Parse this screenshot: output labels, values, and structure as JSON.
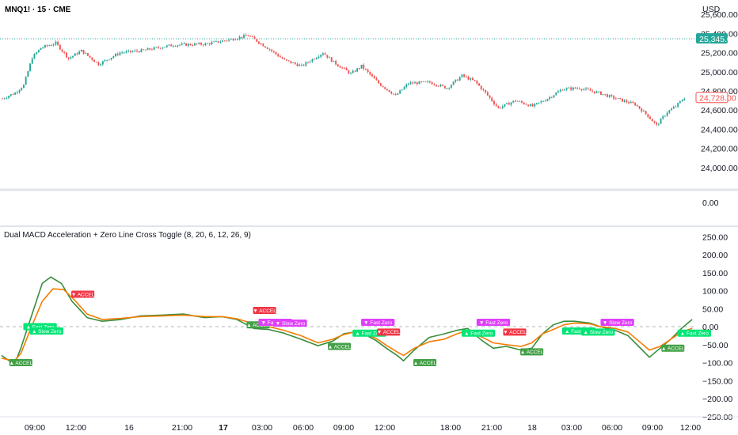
{
  "header": {
    "symbol_line": "MNQ1! · 15 · CME",
    "currency": "USD"
  },
  "price_axis": {
    "ticks": [
      "25,600.00",
      "25,400.00",
      "25,200.00",
      "25,000.00",
      "24,800.00",
      "24,600.00",
      "24,400.00",
      "24,200.00",
      "24,000.00"
    ],
    "last_price_badge": "25,345.00",
    "current_price_badge": "24,728.00"
  },
  "volume_pane": {
    "tick": "0.00"
  },
  "indicator": {
    "title": "Dual MACD Acceleration + Zero Line Cross Toggle (8, 20, 6, 12, 26, 9)",
    "ticks": [
      "250.00",
      "200.00",
      "150.00",
      "100.00",
      "50.00",
      "0.00",
      "−50.00",
      "−100.00",
      "−150.00",
      "−200.00",
      "−250.00"
    ]
  },
  "time_axis": {
    "labels": [
      "09:00",
      "12:00",
      "16",
      "21:00",
      "17",
      "03:00",
      "06:00",
      "09:00",
      "12:00",
      "18:00",
      "21:00",
      "18",
      "03:00",
      "06:00",
      "09:00",
      "12:00"
    ],
    "bold_labels": [
      "17"
    ]
  },
  "colors": {
    "up": "#26a69a",
    "down": "#ef5350",
    "fast_line": "#388e3c",
    "slow_line": "#f57c00",
    "accel_up": "#43a047",
    "accel_down": "#f23645",
    "zero_cross_up": "#00e676",
    "zero_cross_down": "#e040fb"
  },
  "chart_data": [
    {
      "type": "candlestick",
      "title": "MNQ1! · 15 · CME",
      "y_unit": "USD",
      "ylim": [
        23850,
        25750
      ],
      "reference_line": 25345,
      "last_value": 24728,
      "close_path": [
        {
          "bar": 0,
          "close": 24720
        },
        {
          "bar": 6,
          "close": 24780
        },
        {
          "bar": 10,
          "close": 24860
        },
        {
          "bar": 14,
          "close": 25150
        },
        {
          "bar": 18,
          "close": 25250
        },
        {
          "bar": 25,
          "close": 25300
        },
        {
          "bar": 31,
          "close": 25140
        },
        {
          "bar": 37,
          "close": 25220
        },
        {
          "bar": 45,
          "close": 25080
        },
        {
          "bar": 55,
          "close": 25200
        },
        {
          "bar": 65,
          "close": 25220
        },
        {
          "bar": 80,
          "close": 25280
        },
        {
          "bar": 95,
          "close": 25290
        },
        {
          "bar": 105,
          "close": 25330
        },
        {
          "bar": 115,
          "close": 25380
        },
        {
          "bar": 124,
          "close": 25250
        },
        {
          "bar": 132,
          "close": 25120
        },
        {
          "bar": 140,
          "close": 25060
        },
        {
          "bar": 150,
          "close": 25200
        },
        {
          "bar": 155,
          "close": 25100
        },
        {
          "bar": 163,
          "close": 24980
        },
        {
          "bar": 168,
          "close": 25060
        },
        {
          "bar": 176,
          "close": 24880
        },
        {
          "bar": 184,
          "close": 24750
        },
        {
          "bar": 190,
          "close": 24880
        },
        {
          "bar": 200,
          "close": 24890
        },
        {
          "bar": 208,
          "close": 24830
        },
        {
          "bar": 215,
          "close": 24960
        },
        {
          "bar": 221,
          "close": 24900
        },
        {
          "bar": 226,
          "close": 24780
        },
        {
          "bar": 232,
          "close": 24620
        },
        {
          "bar": 240,
          "close": 24700
        },
        {
          "bar": 248,
          "close": 24640
        },
        {
          "bar": 255,
          "close": 24720
        },
        {
          "bar": 262,
          "close": 24820
        },
        {
          "bar": 270,
          "close": 24830
        },
        {
          "bar": 279,
          "close": 24780
        },
        {
          "bar": 287,
          "close": 24720
        },
        {
          "bar": 296,
          "close": 24660
        },
        {
          "bar": 302,
          "close": 24540
        },
        {
          "bar": 306,
          "close": 24440
        },
        {
          "bar": 311,
          "close": 24580
        },
        {
          "bar": 315,
          "close": 24640
        },
        {
          "bar": 319,
          "close": 24728
        }
      ]
    },
    {
      "type": "line",
      "title": "Dual MACD Acceleration + Zero Line Cross Toggle (8, 20, 6, 12, 26, 9)",
      "ylim": [
        -260,
        260
      ],
      "x_unit": "bar",
      "series": [
        {
          "color": "#388e3c",
          "points": [
            [
              0,
              -80
            ],
            [
              6,
              -105
            ],
            [
              9,
              -60
            ],
            [
              14,
              30
            ],
            [
              19,
              120
            ],
            [
              23,
              138
            ],
            [
              28,
              120
            ],
            [
              33,
              70
            ],
            [
              40,
              25
            ],
            [
              47,
              15
            ],
            [
              56,
              20
            ],
            [
              65,
              30
            ],
            [
              75,
              32
            ],
            [
              85,
              35
            ],
            [
              95,
              25
            ],
            [
              103,
              28
            ],
            [
              110,
              20
            ],
            [
              118,
              -5
            ],
            [
              125,
              -8
            ],
            [
              132,
              -18
            ],
            [
              140,
              -35
            ],
            [
              148,
              -53
            ],
            [
              155,
              -40
            ],
            [
              160,
              -20
            ],
            [
              165,
              -15
            ],
            [
              170,
              -22
            ],
            [
              175,
              -38
            ],
            [
              180,
              -60
            ],
            [
              185,
              -80
            ],
            [
              188,
              -95
            ],
            [
              193,
              -65
            ],
            [
              200,
              -30
            ],
            [
              207,
              -20
            ],
            [
              213,
              -10
            ],
            [
              218,
              -5
            ],
            [
              225,
              -40
            ],
            [
              230,
              -60
            ],
            [
              236,
              -55
            ],
            [
              243,
              -65
            ],
            [
              248,
              -60
            ],
            [
              253,
              -20
            ],
            [
              258,
              5
            ],
            [
              263,
              15
            ],
            [
              268,
              15
            ],
            [
              275,
              10
            ],
            [
              280,
              0
            ],
            [
              287,
              -10
            ],
            [
              293,
              -25
            ],
            [
              298,
              -55
            ],
            [
              303,
              -85
            ],
            [
              308,
              -60
            ],
            [
              313,
              -35
            ],
            [
              318,
              -5
            ],
            [
              323,
              20
            ]
          ]
        },
        {
          "color": "#f57c00",
          "points": [
            [
              0,
              -88
            ],
            [
              6,
              -95
            ],
            [
              9,
              -75
            ],
            [
              14,
              0
            ],
            [
              19,
              70
            ],
            [
              24,
              105
            ],
            [
              29,
              103
            ],
            [
              34,
              75
            ],
            [
              40,
              35
            ],
            [
              47,
              20
            ],
            [
              56,
              23
            ],
            [
              65,
              28
            ],
            [
              75,
              30
            ],
            [
              85,
              32
            ],
            [
              95,
              28
            ],
            [
              103,
              28
            ],
            [
              110,
              22
            ],
            [
              118,
              8
            ],
            [
              125,
              0
            ],
            [
              132,
              -10
            ],
            [
              140,
              -25
            ],
            [
              148,
              -45
            ],
            [
              155,
              -35
            ],
            [
              160,
              -22
            ],
            [
              165,
              -15
            ],
            [
              170,
              -20
            ],
            [
              175,
              -32
            ],
            [
              180,
              -52
            ],
            [
              185,
              -70
            ],
            [
              188,
              -80
            ],
            [
              193,
              -60
            ],
            [
              200,
              -42
            ],
            [
              207,
              -35
            ],
            [
              213,
              -20
            ],
            [
              218,
              -10
            ],
            [
              225,
              -30
            ],
            [
              230,
              -45
            ],
            [
              236,
              -50
            ],
            [
              243,
              -55
            ],
            [
              248,
              -45
            ],
            [
              253,
              -20
            ],
            [
              258,
              -8
            ],
            [
              263,
              5
            ],
            [
              268,
              10
            ],
            [
              275,
              8
            ],
            [
              280,
              0
            ],
            [
              287,
              -5
            ],
            [
              293,
              -15
            ],
            [
              298,
              -40
            ],
            [
              303,
              -65
            ],
            [
              308,
              -55
            ],
            [
              313,
              -35
            ],
            [
              318,
              -15
            ],
            [
              323,
              -5
            ]
          ]
        }
      ],
      "annotations": [
        {
          "text": "▲ ACCEL",
          "bar": 9,
          "y": -100,
          "kind": "accel_up"
        },
        {
          "text": "▲ Fast Zero",
          "bar": 18,
          "y": 0,
          "kind": "zero_cross_up"
        },
        {
          "text": "▲ Slow Zero",
          "bar": 21,
          "y": -12,
          "kind": "zero_cross_up"
        },
        {
          "text": "▼ ACCEL",
          "bar": 38,
          "y": 90,
          "kind": "accel_down"
        },
        {
          "text": "▲ ACCEL",
          "bar": 120,
          "y": 5,
          "kind": "accel_up"
        },
        {
          "text": "▼ ACCEL",
          "bar": 123,
          "y": 45,
          "kind": "accel_down"
        },
        {
          "text": "▼ Fast Zero",
          "bar": 128,
          "y": 12,
          "kind": "zero_cross_down"
        },
        {
          "text": "▼ Slow Zero",
          "bar": 135,
          "y": 10,
          "kind": "zero_cross_down"
        },
        {
          "text": "▲ ACCEL",
          "bar": 158,
          "y": -55,
          "kind": "accel_up"
        },
        {
          "text": "▼ Fast Zero",
          "bar": 176,
          "y": 12,
          "kind": "zero_cross_down"
        },
        {
          "text": "▲ Fast Zero",
          "bar": 172,
          "y": -18,
          "kind": "zero_cross_up"
        },
        {
          "text": "▼ ACCEL",
          "bar": 181,
          "y": -15,
          "kind": "accel_down"
        },
        {
          "text": "▲ ACCEL",
          "bar": 198,
          "y": -100,
          "kind": "accel_up"
        },
        {
          "text": "▲ Fast Zero",
          "bar": 223,
          "y": -18,
          "kind": "zero_cross_up"
        },
        {
          "text": "▼ Fast Zero",
          "bar": 230,
          "y": 12,
          "kind": "zero_cross_down"
        },
        {
          "text": "▼ ACCEL",
          "bar": 240,
          "y": -15,
          "kind": "accel_down"
        },
        {
          "text": "▲ ACCEL",
          "bar": 248,
          "y": -70,
          "kind": "accel_up"
        },
        {
          "text": "▲ Fast Zero",
          "bar": 270,
          "y": -12,
          "kind": "zero_cross_up"
        },
        {
          "text": "▲ Slow Zero",
          "bar": 279,
          "y": -15,
          "kind": "zero_cross_up"
        },
        {
          "text": "▼ Slow Zero",
          "bar": 288,
          "y": 12,
          "kind": "zero_cross_down"
        },
        {
          "text": "▲ ACCEL",
          "bar": 314,
          "y": -60,
          "kind": "accel_up"
        },
        {
          "text": "▲ Fast Zero",
          "bar": 324,
          "y": -18,
          "kind": "zero_cross_up"
        }
      ]
    }
  ]
}
